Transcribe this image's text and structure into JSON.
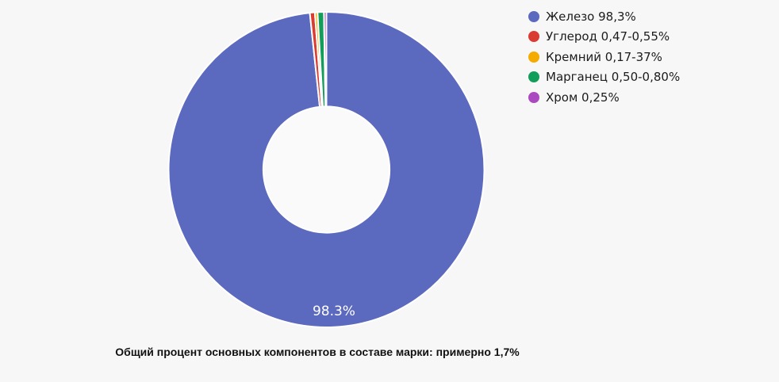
{
  "page": {
    "background_color": "#f7f7f7"
  },
  "chart_data": {
    "type": "pie",
    "style": "donut",
    "title": "",
    "categories": [
      "Железо",
      "Углерод",
      "Кремний",
      "Марганец",
      "Хром"
    ],
    "values": [
      98.3,
      0.51,
      0.27,
      0.65,
      0.25
    ],
    "colors": [
      "#5b69bf",
      "#db3c31",
      "#f5ac00",
      "#129d5a",
      "#ab4ac0"
    ],
    "border_color": "#ffffff",
    "hole_color": "#fafafa",
    "center_label": "98.3%",
    "center_label_color": "#ffffff",
    "donut_hole_ratio": 0.4,
    "legend_position": "right",
    "legend": [
      {
        "label": "Железо 98,3%",
        "color": "#5b69bf"
      },
      {
        "label": "Углерод 0,47-0,55%",
        "color": "#db3c31"
      },
      {
        "label": "Кремний 0,17-37%",
        "color": "#f5ac00"
      },
      {
        "label": "Марганец 0,50-0,80%",
        "color": "#129d5a"
      },
      {
        "label": "Хром 0,25%",
        "color": "#ab4ac0"
      }
    ]
  },
  "caption": {
    "text": "Общий процент основных компонентов в составе марки: примерно 1,7%"
  }
}
